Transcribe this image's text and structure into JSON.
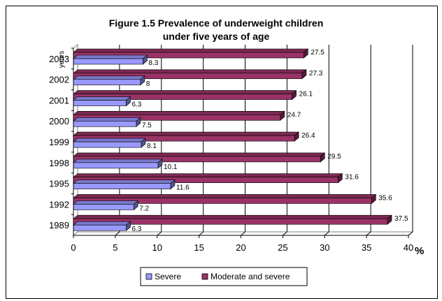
{
  "chart_data": {
    "type": "bar",
    "orientation": "horizontal",
    "title": "Figure 1.5 Prevalence of underweight children under five years of age",
    "title_lines": [
      "Figure 1.5 Prevalence of underweight children",
      "under five years of age"
    ],
    "ylabel": "years",
    "xlabel": "%",
    "xlim": [
      0,
      40
    ],
    "xticks": [
      0,
      5,
      10,
      15,
      20,
      25,
      30,
      35,
      40
    ],
    "grid": "vertical major gridlines",
    "legend_position": "bottom",
    "categories": [
      "2003",
      "2002",
      "2001",
      "2000",
      "1999",
      "1998",
      "1995",
      "1992",
      "1989"
    ],
    "series": [
      {
        "name": "Moderate and severe",
        "color": "#993366",
        "values": [
          27.5,
          27.3,
          26.1,
          24.7,
          26.4,
          29.5,
          31.6,
          35.6,
          37.5
        ]
      },
      {
        "name": "Severe",
        "color": "#9999ff",
        "values": [
          8.3,
          8,
          6.3,
          7.5,
          8.1,
          10.1,
          11.6,
          7.2,
          6.3
        ]
      }
    ],
    "legend": [
      "Severe",
      "Moderate and severe"
    ]
  }
}
